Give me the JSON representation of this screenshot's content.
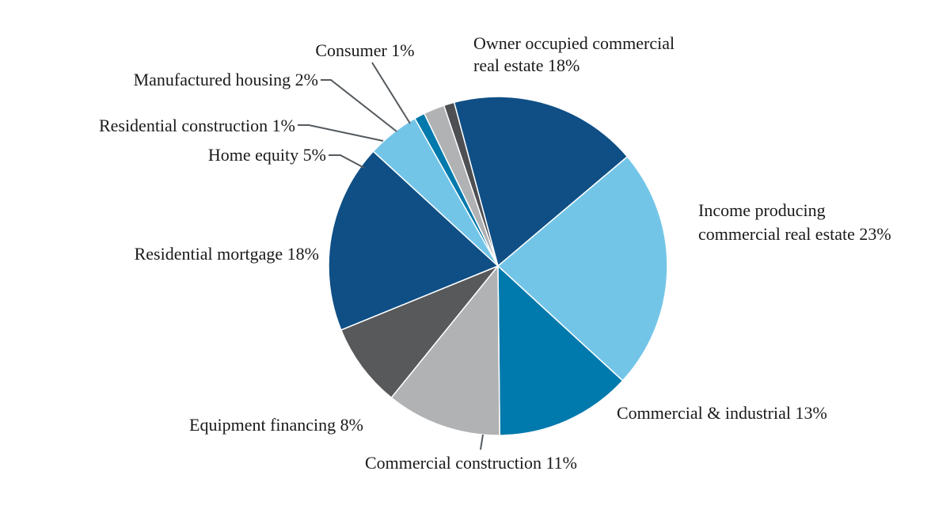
{
  "chart_data": {
    "type": "pie",
    "title": "",
    "start_angle_deg": -15,
    "direction": "clockwise",
    "slices": [
      {
        "key": "owner",
        "label_lines": [
          "Owner occupied commercial",
          "real estate 18%"
        ],
        "value": 18,
        "color": "#0f4f85"
      },
      {
        "key": "income",
        "label_lines": [
          "Income producing",
          "commercial real estate 23%"
        ],
        "value": 23,
        "color": "#73c5e8"
      },
      {
        "key": "ci",
        "label_lines": [
          "Commercial & industrial 13%"
        ],
        "value": 13,
        "color": "#0079ac"
      },
      {
        "key": "cc",
        "label_lines": [
          "Commercial construction 11%"
        ],
        "value": 11,
        "color": "#b0b2b4"
      },
      {
        "key": "equip",
        "label_lines": [
          "Equipment financing 8%"
        ],
        "value": 8,
        "color": "#57595b"
      },
      {
        "key": "resmort",
        "label_lines": [
          "Residential mortgage 18%"
        ],
        "value": 18,
        "color": "#0f4f85"
      },
      {
        "key": "home",
        "label_lines": [
          "Home equity 5%"
        ],
        "value": 5,
        "color": "#73c5e8"
      },
      {
        "key": "rescon",
        "label_lines": [
          "Residential construction 1%"
        ],
        "value": 1,
        "color": "#0079ac"
      },
      {
        "key": "mfg",
        "label_lines": [
          "Manufactured housing 2%"
        ],
        "value": 2,
        "color": "#b0b2b4"
      },
      {
        "key": "consumer",
        "label_lines": [
          "Consumer 1%"
        ],
        "value": 1,
        "color": "#4d4f52"
      }
    ]
  }
}
